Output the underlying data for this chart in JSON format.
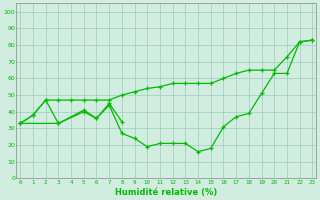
{
  "series1_x": [
    0,
    1,
    2,
    3,
    5,
    6,
    7,
    8
  ],
  "series1_y": [
    33,
    38,
    47,
    33,
    41,
    36,
    45,
    34
  ],
  "series2_x": [
    0,
    3,
    5,
    6,
    7,
    8,
    9,
    10,
    11,
    12,
    13,
    14,
    15,
    16,
    17,
    18,
    19,
    20,
    21,
    22,
    23
  ],
  "series2_y": [
    33,
    33,
    40,
    36,
    44,
    27,
    24,
    19,
    21,
    21,
    21,
    16,
    18,
    31,
    37,
    39,
    51,
    63,
    63,
    82,
    83
  ],
  "series3_x": [
    0,
    1,
    2,
    3,
    4,
    5,
    6,
    7,
    8,
    9,
    10,
    11,
    12,
    13,
    14,
    15,
    16,
    17,
    18,
    19,
    20,
    21,
    22,
    23
  ],
  "series3_y": [
    33,
    38,
    47,
    47,
    47,
    47,
    47,
    47,
    50,
    52,
    54,
    55,
    57,
    57,
    57,
    57,
    60,
    63,
    65,
    65,
    65,
    73,
    82,
    83
  ],
  "line_color": "#00bb00",
  "bg_color": "#d0ede0",
  "grid_color": "#99ccbb",
  "xlabel": "Humidité relative (%)",
  "yticks": [
    0,
    10,
    20,
    30,
    40,
    50,
    60,
    70,
    80,
    90,
    100
  ],
  "xticks": [
    0,
    1,
    2,
    3,
    4,
    5,
    6,
    7,
    8,
    9,
    10,
    11,
    12,
    13,
    14,
    15,
    16,
    17,
    18,
    19,
    20,
    21,
    22,
    23
  ],
  "ylim": [
    0,
    105
  ],
  "xlim": [
    -0.3,
    23.3
  ],
  "figsize": [
    3.2,
    2.0
  ],
  "dpi": 100
}
